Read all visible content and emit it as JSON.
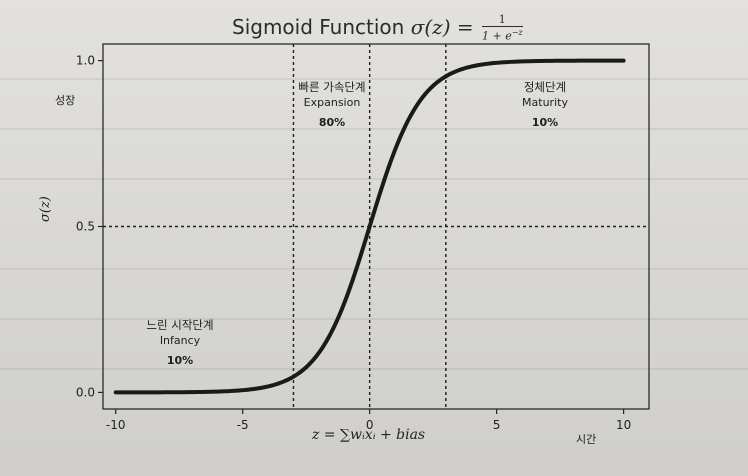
{
  "chart_data": {
    "type": "line",
    "title_text": "Sigmoid Function",
    "title_formula": "σ(z) =",
    "title_numerator": "1",
    "title_denominator": "1 + e",
    "title_exponent": "−z",
    "xlabel": "z = ∑wᵢxᵢ + bias",
    "ylabel": "σ(z)",
    "x_extra_label": "시간",
    "y_extra_label": "성장",
    "xlim": [
      -10.5,
      11
    ],
    "ylim": [
      -0.05,
      1.05
    ],
    "xticks": [
      -10,
      -5,
      0,
      5,
      10
    ],
    "xtick_labels": [
      "-10",
      "-5",
      "0",
      "5",
      "10"
    ],
    "yticks": [
      0.0,
      0.5,
      1.0
    ],
    "ytick_labels": [
      "0.0",
      "0.5",
      "1.0"
    ],
    "series": [
      {
        "function": "sigmoid",
        "x_range": [
          -10,
          10
        ],
        "color": "#1a1a1a"
      }
    ],
    "reference_lines": {
      "vertical_x": [
        -3,
        0,
        3
      ],
      "horizontal_y": [
        0.5
      ]
    },
    "annotations": [
      {
        "name": "느린 시작단계",
        "english": "Infancy",
        "percent": "10%"
      },
      {
        "name": "빠른 가속단계",
        "english": "Expansion",
        "percent": "80%"
      },
      {
        "name": "정체단계",
        "english": "Maturity",
        "percent": "10%"
      }
    ],
    "grid": false
  }
}
